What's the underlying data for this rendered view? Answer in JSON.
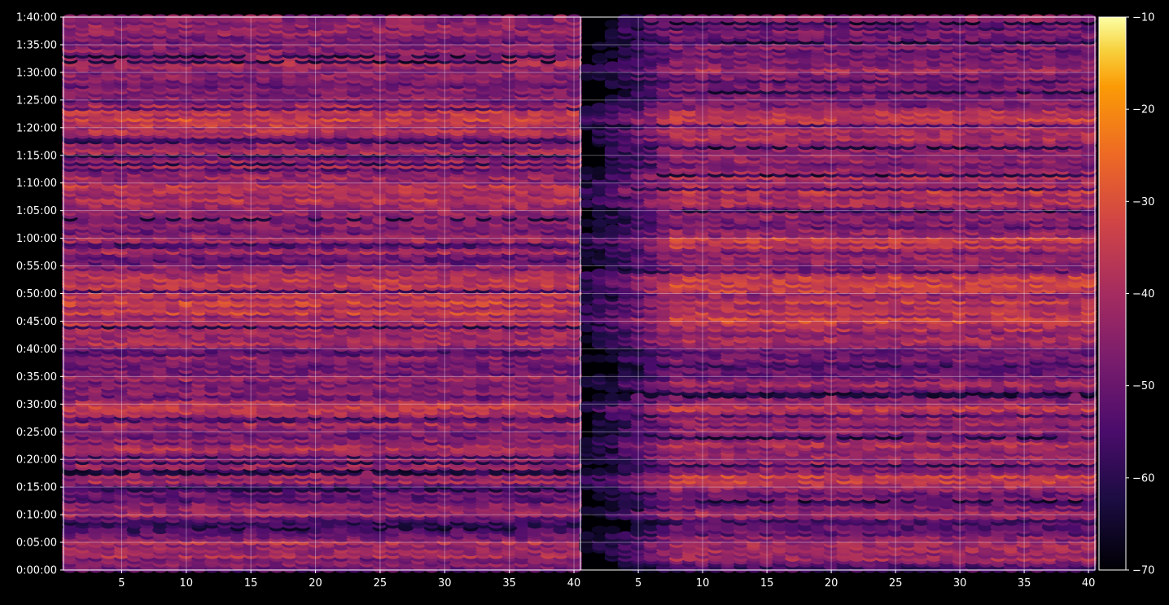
{
  "chart_data": {
    "type": "heatmap",
    "title": "",
    "xlabel": "",
    "ylabel": "",
    "panels": [
      {
        "xlim": [
          1,
          40
        ],
        "xticks": [
          5,
          10,
          15,
          20,
          25,
          30,
          35,
          40
        ],
        "xtick_labels": [
          "5",
          "10",
          "15",
          "20",
          "25",
          "30",
          "35",
          "40"
        ]
      },
      {
        "xlim": [
          1,
          40
        ],
        "xticks": [
          5,
          10,
          15,
          20,
          25,
          30,
          35,
          40
        ],
        "xtick_labels": [
          "5",
          "10",
          "15",
          "20",
          "25",
          "30",
          "35",
          "40"
        ]
      }
    ],
    "y_ticks_seconds": [
      0,
      300,
      600,
      900,
      1200,
      1500,
      1800,
      2100,
      2400,
      2700,
      3000,
      3300,
      3600,
      3900,
      4200,
      4500,
      4800,
      5100,
      5400,
      5700,
      6000
    ],
    "y_tick_labels": [
      "0:00:00",
      "0:05:00",
      "0:10:00",
      "0:15:00",
      "0:20:00",
      "0:25:00",
      "0:30:00",
      "0:35:00",
      "0:40:00",
      "0:45:00",
      "0:50:00",
      "0:55:00",
      "1:00:00",
      "1:05:00",
      "1:10:00",
      "1:15:00",
      "1:20:00",
      "1:25:00",
      "1:30:00",
      "1:35:00",
      "1:40:00"
    ],
    "ylim_seconds": [
      0,
      6000
    ],
    "grid": true,
    "colormap": "inferno",
    "colorbar": {
      "range": [
        -70,
        -10
      ],
      "ticks": [
        -70,
        -60,
        -50,
        -40,
        -30,
        -20,
        -10
      ],
      "tick_labels": [
        "−70",
        "−60",
        "−50",
        "−40",
        "−30",
        "−20",
        "−10"
      ]
    },
    "row_levels_seconds": [
      [
        0,
        -55
      ],
      [
        100,
        -48
      ],
      [
        200,
        -40
      ],
      [
        300,
        -38
      ],
      [
        400,
        -47
      ],
      [
        500,
        -62
      ],
      [
        600,
        -44
      ],
      [
        700,
        -46
      ],
      [
        800,
        -50
      ],
      [
        900,
        -42
      ],
      [
        1000,
        -33
      ],
      [
        1100,
        -47
      ],
      [
        1200,
        -45
      ],
      [
        1300,
        -41
      ],
      [
        1400,
        -44
      ],
      [
        1500,
        -49
      ],
      [
        1600,
        -42
      ],
      [
        1700,
        -40
      ],
      [
        1800,
        -39
      ],
      [
        1900,
        -52
      ],
      [
        2000,
        -44
      ],
      [
        2100,
        -46
      ],
      [
        2200,
        -53
      ],
      [
        2300,
        -47
      ],
      [
        2400,
        -50
      ],
      [
        2500,
        -40
      ],
      [
        2600,
        -43
      ],
      [
        2700,
        -37
      ],
      [
        2800,
        -38
      ],
      [
        2900,
        -36
      ],
      [
        3000,
        -40
      ],
      [
        3100,
        -34
      ],
      [
        3200,
        -37
      ],
      [
        3300,
        -44
      ],
      [
        3400,
        -48
      ],
      [
        3500,
        -40
      ],
      [
        3600,
        -36
      ],
      [
        3700,
        -47
      ],
      [
        3800,
        -49
      ],
      [
        3900,
        -45
      ],
      [
        4000,
        -41
      ],
      [
        4100,
        -38
      ],
      [
        4200,
        -40
      ],
      [
        4300,
        -42
      ],
      [
        4400,
        -44
      ],
      [
        4500,
        -46
      ],
      [
        4600,
        -43
      ],
      [
        4700,
        -39
      ],
      [
        4800,
        -37
      ],
      [
        4900,
        -36
      ],
      [
        5000,
        -40
      ],
      [
        5100,
        -48
      ],
      [
        5200,
        -44
      ],
      [
        5300,
        -52
      ],
      [
        5400,
        -43
      ],
      [
        5500,
        -45
      ],
      [
        5600,
        -50
      ],
      [
        5700,
        -46
      ],
      [
        5800,
        -47
      ],
      [
        5900,
        -44
      ],
      [
        6000,
        -50
      ]
    ],
    "right_panel_fade_x": [
      1,
      8
    ],
    "right_panel_fade_db": -25
  }
}
